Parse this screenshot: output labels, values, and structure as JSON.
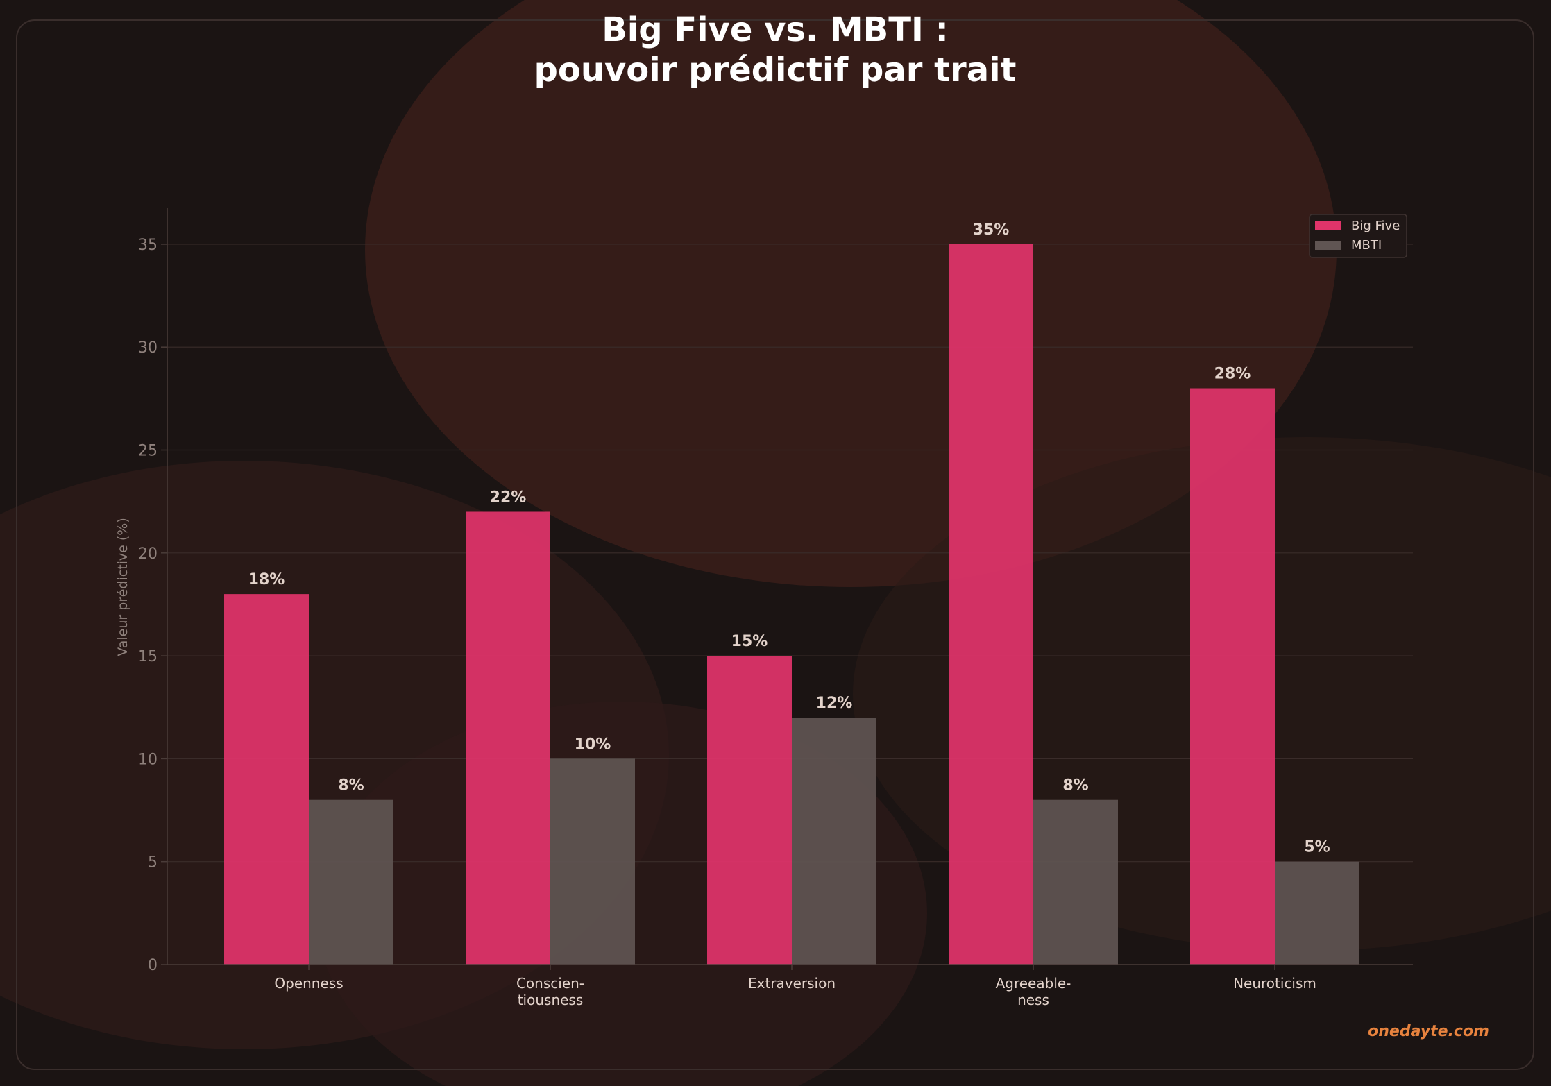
{
  "title_lines": [
    "Big Five vs. MBTI :",
    "pouvoir prédictif par trait"
  ],
  "watermark": "onedayte.com",
  "colors": {
    "background": "#1b1413",
    "big_five": "#e0346a",
    "mbti": "#605553",
    "watermark": "#e8833e",
    "text": "#ffffff",
    "tick_text": "#8f817c",
    "label_text": "#e3d3cb"
  },
  "chart_data": {
    "type": "bar",
    "title": "Big Five vs. MBTI : pouvoir prédictif par trait",
    "categories": [
      [
        "Openness"
      ],
      [
        "Conscien-",
        "tiousness"
      ],
      [
        "Extraversion"
      ],
      [
        "Agreeable-",
        "ness"
      ],
      [
        "Neuroticism"
      ]
    ],
    "series": [
      {
        "name": "Big Five",
        "values": [
          18,
          22,
          15,
          35,
          28
        ],
        "labels": [
          "18%",
          "22%",
          "15%",
          "35%",
          "28%"
        ],
        "color": "#e0346a"
      },
      {
        "name": "MBTI",
        "values": [
          8,
          10,
          12,
          8,
          5
        ],
        "labels": [
          "8%",
          "10%",
          "12%",
          "8%",
          "5%"
        ],
        "color": "#605553"
      }
    ],
    "xlabel": "",
    "ylabel": "Valeur prédictive (%)",
    "ylim": [
      0,
      36.75
    ],
    "yticks": [
      0,
      5,
      10,
      15,
      20,
      25,
      30,
      35
    ],
    "grid": true,
    "legend_position": "top-right"
  }
}
